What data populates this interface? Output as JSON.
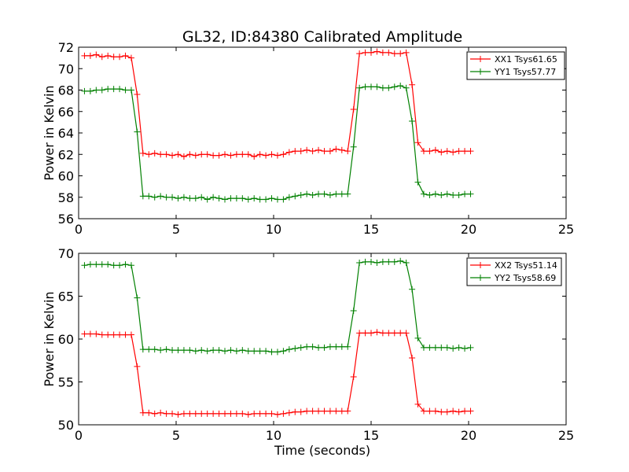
{
  "figure": {
    "title": "GL32, ID:84380 Calibrated Amplitude",
    "xlabel": "Time (seconds)"
  },
  "colors": {
    "xx": "#ff0000",
    "yy": "#008000",
    "axes": "#000000",
    "background": "#ffffff"
  },
  "chart_data": [
    {
      "type": "line",
      "title": "GL32, ID:84380 Calibrated Amplitude",
      "xlabel": "",
      "ylabel": "Power in Kelvin",
      "xlim": [
        0,
        25
      ],
      "ylim": [
        56,
        72
      ],
      "xticks": [
        0,
        5,
        10,
        15,
        20,
        25
      ],
      "yticks": [
        56,
        58,
        60,
        62,
        64,
        66,
        68,
        70,
        72
      ],
      "grid": false,
      "legend": "top-right",
      "x": [
        0.3,
        0.6,
        0.9,
        1.2,
        1.5,
        1.8,
        2.1,
        2.4,
        2.7,
        3.0,
        3.3,
        3.6,
        3.9,
        4.2,
        4.5,
        4.8,
        5.1,
        5.4,
        5.7,
        6.0,
        6.3,
        6.6,
        6.9,
        7.2,
        7.5,
        7.8,
        8.1,
        8.4,
        8.7,
        9.0,
        9.3,
        9.6,
        9.9,
        10.2,
        10.5,
        10.8,
        11.1,
        11.4,
        11.7,
        12.0,
        12.3,
        12.6,
        12.9,
        13.2,
        13.5,
        13.8,
        14.1,
        14.4,
        14.7,
        15.0,
        15.3,
        15.6,
        15.9,
        16.2,
        16.5,
        16.8,
        17.1,
        17.4,
        17.7,
        18.0,
        18.3,
        18.6,
        18.9,
        19.2,
        19.5,
        19.8,
        20.1
      ],
      "series": [
        {
          "name": "XX1 Tsys61.65",
          "color": "#ff0000",
          "values": [
            71.2,
            71.2,
            71.3,
            71.1,
            71.2,
            71.1,
            71.1,
            71.2,
            71.0,
            67.6,
            62.1,
            62.0,
            62.1,
            62.0,
            62.0,
            61.9,
            62.0,
            61.8,
            62.0,
            61.9,
            62.0,
            62.0,
            61.9,
            61.9,
            62.0,
            61.9,
            62.0,
            62.0,
            62.0,
            61.8,
            62.0,
            61.9,
            62.0,
            61.9,
            62.0,
            62.2,
            62.3,
            62.3,
            62.4,
            62.3,
            62.4,
            62.3,
            62.3,
            62.5,
            62.4,
            62.3,
            66.2,
            71.4,
            71.5,
            71.5,
            71.6,
            71.5,
            71.5,
            71.4,
            71.4,
            71.5,
            68.5,
            63.1,
            62.3,
            62.3,
            62.4,
            62.2,
            62.3,
            62.2,
            62.3,
            62.3,
            62.3
          ]
        },
        {
          "name": "YY1 Tsys57.77",
          "color": "#008000",
          "values": [
            67.9,
            67.9,
            68.0,
            68.0,
            68.1,
            68.1,
            68.1,
            68.0,
            68.0,
            64.1,
            58.1,
            58.1,
            58.0,
            58.1,
            58.0,
            58.0,
            57.9,
            58.0,
            57.9,
            57.9,
            58.0,
            57.8,
            58.0,
            57.9,
            57.8,
            57.9,
            57.9,
            57.9,
            57.8,
            57.9,
            57.8,
            57.8,
            57.9,
            57.8,
            57.8,
            58.0,
            58.1,
            58.2,
            58.3,
            58.2,
            58.3,
            58.3,
            58.2,
            58.3,
            58.3,
            58.3,
            62.7,
            68.2,
            68.3,
            68.3,
            68.3,
            68.2,
            68.2,
            68.3,
            68.4,
            68.2,
            65.1,
            59.4,
            58.3,
            58.2,
            58.3,
            58.2,
            58.3,
            58.2,
            58.2,
            58.3,
            58.3
          ]
        }
      ]
    },
    {
      "type": "line",
      "title": "",
      "xlabel": "Time (seconds)",
      "ylabel": "Power in Kelvin",
      "xlim": [
        0,
        25
      ],
      "ylim": [
        50,
        70
      ],
      "xticks": [
        0,
        5,
        10,
        15,
        20,
        25
      ],
      "yticks": [
        50,
        55,
        60,
        65,
        70
      ],
      "grid": false,
      "legend": "top-right",
      "x": [
        0.3,
        0.6,
        0.9,
        1.2,
        1.5,
        1.8,
        2.1,
        2.4,
        2.7,
        3.0,
        3.3,
        3.6,
        3.9,
        4.2,
        4.5,
        4.8,
        5.1,
        5.4,
        5.7,
        6.0,
        6.3,
        6.6,
        6.9,
        7.2,
        7.5,
        7.8,
        8.1,
        8.4,
        8.7,
        9.0,
        9.3,
        9.6,
        9.9,
        10.2,
        10.5,
        10.8,
        11.1,
        11.4,
        11.7,
        12.0,
        12.3,
        12.6,
        12.9,
        13.2,
        13.5,
        13.8,
        14.1,
        14.4,
        14.7,
        15.0,
        15.3,
        15.6,
        15.9,
        16.2,
        16.5,
        16.8,
        17.1,
        17.4,
        17.7,
        18.0,
        18.3,
        18.6,
        18.9,
        19.2,
        19.5,
        19.8,
        20.1
      ],
      "series": [
        {
          "name": "XX2 Tsys51.14",
          "color": "#ff0000",
          "values": [
            60.6,
            60.6,
            60.6,
            60.5,
            60.5,
            60.5,
            60.5,
            60.5,
            60.5,
            56.8,
            51.4,
            51.4,
            51.3,
            51.4,
            51.3,
            51.3,
            51.2,
            51.3,
            51.3,
            51.3,
            51.3,
            51.3,
            51.3,
            51.3,
            51.3,
            51.3,
            51.3,
            51.3,
            51.2,
            51.3,
            51.3,
            51.3,
            51.3,
            51.2,
            51.3,
            51.4,
            51.5,
            51.5,
            51.6,
            51.6,
            51.6,
            51.6,
            51.6,
            51.6,
            51.6,
            51.6,
            55.6,
            60.7,
            60.7,
            60.7,
            60.8,
            60.7,
            60.7,
            60.7,
            60.7,
            60.7,
            57.8,
            52.4,
            51.6,
            51.6,
            51.6,
            51.5,
            51.5,
            51.6,
            51.5,
            51.6,
            51.6
          ]
        },
        {
          "name": "YY2 Tsys58.69",
          "color": "#008000",
          "values": [
            68.6,
            68.7,
            68.7,
            68.7,
            68.7,
            68.6,
            68.6,
            68.7,
            68.6,
            64.8,
            58.8,
            58.8,
            58.8,
            58.7,
            58.8,
            58.7,
            58.7,
            58.7,
            58.7,
            58.6,
            58.7,
            58.6,
            58.7,
            58.7,
            58.6,
            58.7,
            58.6,
            58.7,
            58.6,
            58.6,
            58.6,
            58.6,
            58.5,
            58.5,
            58.6,
            58.8,
            58.9,
            59.0,
            59.1,
            59.1,
            59.0,
            59.0,
            59.1,
            59.1,
            59.1,
            59.1,
            63.3,
            68.9,
            69.0,
            69.0,
            68.9,
            69.0,
            69.0,
            69.0,
            69.1,
            68.9,
            65.8,
            60.1,
            59.0,
            59.0,
            59.0,
            59.0,
            59.0,
            58.9,
            59.0,
            58.9,
            59.0
          ]
        }
      ]
    }
  ]
}
